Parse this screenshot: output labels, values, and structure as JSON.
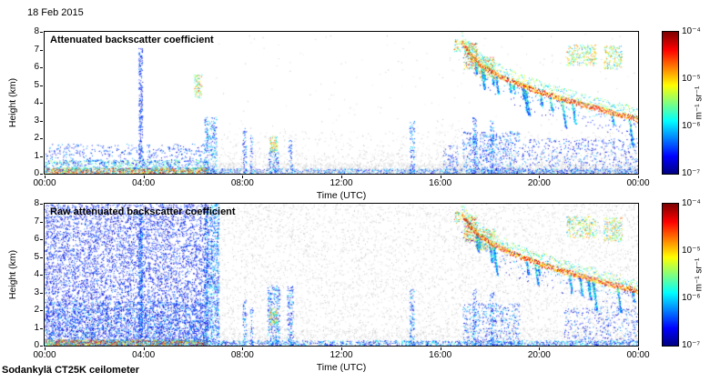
{
  "header": {
    "date": "18 Feb 2015"
  },
  "footer": {
    "instrument": "Sodankylä CT25K ceilometer"
  },
  "chart_data": [
    {
      "type": "heatmap",
      "title": "Attenuated backscatter coefficient",
      "xlabel": "Time (UTC)",
      "ylabel": "Height (km)",
      "x_tick_labels": [
        "00:00",
        "04:00",
        "08:00",
        "12:00",
        "16:00",
        "20:00",
        "00:00"
      ],
      "y_tick_labels": [
        0,
        1,
        2,
        3,
        4,
        5,
        6,
        7,
        8
      ],
      "xlim_hours": [
        0,
        24
      ],
      "ylim": [
        0,
        8
      ],
      "colorbar": {
        "scale": "log",
        "colormap": "jet",
        "unit": "m⁻¹ sr⁻¹",
        "tick_labels": [
          "10⁻⁴",
          "10⁻⁵",
          "10⁻⁶",
          "10⁻⁷"
        ],
        "value_range_top_to_bottom": [
          0.0001,
          1e-07
        ]
      },
      "intensity_note": "region intensity normalized: 0 = 1e-7, 1 = 1e-4 m-1 sr-1",
      "regions": [
        {
          "kind": "speckle",
          "t": [
            0,
            6.6
          ],
          "h": [
            0,
            0.35
          ],
          "density": 1.0,
          "intensity": [
            0.15,
            1.0
          ],
          "label": "strong surface aerosol layer"
        },
        {
          "kind": "speckle",
          "t": [
            0,
            6.6
          ],
          "h": [
            0.3,
            0.8
          ],
          "density": 0.3,
          "intensity": [
            0.08,
            0.55
          ]
        },
        {
          "kind": "speckle",
          "t": [
            0,
            6.6
          ],
          "h": [
            0.5,
            1.7
          ],
          "density": 0.1,
          "intensity": [
            0.03,
            0.3
          ]
        },
        {
          "kind": "speckle",
          "t": [
            3.8,
            3.95
          ],
          "h": [
            0.6,
            7.1
          ],
          "density": 0.5,
          "intensity": [
            0.04,
            0.3
          ],
          "label": "narrow vertical spike ~03:50"
        },
        {
          "kind": "speckle",
          "t": [
            6.05,
            6.35
          ],
          "h": [
            4.3,
            5.6
          ],
          "density": 0.45,
          "intensity": [
            0.3,
            0.9
          ],
          "label": "mid-level cloud patch ~06:15"
        },
        {
          "kind": "speckle",
          "t": [
            6.45,
            6.95
          ],
          "h": [
            0,
            3.2
          ],
          "density": 0.3,
          "intensity": [
            0.04,
            0.45
          ]
        },
        {
          "kind": "speckle",
          "t": [
            6.6,
            24
          ],
          "h": [
            0,
            0.3
          ],
          "density": 0.45,
          "intensity": [
            0.03,
            0.4
          ]
        },
        {
          "kind": "speckle",
          "t": [
            6.6,
            24
          ],
          "h": [
            0,
            0.6
          ],
          "density": 0.25,
          "gray": true
        },
        {
          "kind": "speckle",
          "t": [
            6.6,
            24
          ],
          "h": [
            0,
            1.2
          ],
          "density": 0.1,
          "gray": true
        },
        {
          "kind": "speckle",
          "t": [
            6.6,
            24
          ],
          "h": [
            1.2,
            2.4
          ],
          "density": 0.035,
          "gray": true
        },
        {
          "kind": "speckle",
          "t": [
            6.6,
            24
          ],
          "h": [
            2.4,
            7.9
          ],
          "density": 0.003,
          "gray": true
        },
        {
          "kind": "speckle",
          "t": [
            15.8,
            17.0
          ],
          "h": [
            0,
            3.0
          ],
          "density": 0.03,
          "gray": true
        },
        {
          "kind": "speckle",
          "t": [
            8.0,
            8.15
          ],
          "h": [
            0,
            2.6
          ],
          "density": 0.3,
          "intensity": [
            0.04,
            0.35
          ]
        },
        {
          "kind": "speckle",
          "t": [
            8.3,
            8.42
          ],
          "h": [
            0,
            2.2
          ],
          "density": 0.25,
          "intensity": [
            0.04,
            0.35
          ]
        },
        {
          "kind": "speckle",
          "t": [
            9.05,
            9.45
          ],
          "h": [
            0,
            1.4
          ],
          "density": 0.3,
          "intensity": [
            0.04,
            0.4
          ]
        },
        {
          "kind": "speckle",
          "t": [
            9.1,
            9.4
          ],
          "h": [
            1.2,
            2.15
          ],
          "density": 0.55,
          "intensity": [
            0.3,
            0.85
          ],
          "label": "low cloud ~09:15"
        },
        {
          "kind": "speckle",
          "t": [
            9.85,
            10.0
          ],
          "h": [
            0,
            2.0
          ],
          "density": 0.25,
          "intensity": [
            0.04,
            0.35
          ]
        },
        {
          "kind": "speckle",
          "t": [
            14.75,
            14.95
          ],
          "h": [
            0,
            3.0
          ],
          "density": 0.28,
          "intensity": [
            0.04,
            0.38
          ]
        },
        {
          "kind": "speckle",
          "t": [
            16.1,
            16.7
          ],
          "h": [
            0,
            1.6
          ],
          "density": 0.15,
          "intensity": [
            0.03,
            0.3
          ]
        },
        {
          "kind": "speckle",
          "t": [
            16.9,
            19.2
          ],
          "h": [
            0,
            2.4
          ],
          "density": 0.18,
          "intensity": [
            0.03,
            0.35
          ]
        },
        {
          "kind": "speckle",
          "t": [
            17.3,
            17.45
          ],
          "h": [
            0,
            3.2
          ],
          "density": 0.35,
          "intensity": [
            0.05,
            0.4
          ]
        },
        {
          "kind": "speckle",
          "t": [
            18.0,
            18.15
          ],
          "h": [
            0,
            3.0
          ],
          "density": 0.35,
          "intensity": [
            0.05,
            0.4
          ]
        },
        {
          "kind": "speckle",
          "t": [
            19.3,
            24
          ],
          "h": [
            0,
            2.0
          ],
          "density": 0.1,
          "intensity": [
            0.03,
            0.3
          ]
        },
        {
          "kind": "speckle",
          "t": [
            16.55,
            16.8
          ],
          "h": [
            6.9,
            7.6
          ],
          "density": 0.4,
          "intensity": [
            0.3,
            0.9
          ]
        },
        {
          "kind": "speckle",
          "t": [
            16.95,
            17.5
          ],
          "h": [
            5.9,
            7.4
          ],
          "density": 0.5,
          "intensity": [
            0.3,
            0.95
          ]
        },
        {
          "kind": "speckle",
          "t": [
            17.4,
            18.2
          ],
          "h": [
            5.4,
            6.6
          ],
          "density": 0.4,
          "intensity": [
            0.3,
            0.9
          ]
        },
        {
          "kind": "path",
          "label": "descending precipitating cloud layer 17:00-24:00",
          "points": [
            [
              16.85,
              7.4
            ],
            [
              17.2,
              6.7
            ],
            [
              17.6,
              6.15
            ],
            [
              18.1,
              5.7
            ],
            [
              18.7,
              5.3
            ],
            [
              19.4,
              4.9
            ],
            [
              20.1,
              4.55
            ],
            [
              20.9,
              4.2
            ],
            [
              21.7,
              3.9
            ],
            [
              22.5,
              3.6
            ],
            [
              23.3,
              3.3
            ],
            [
              24.0,
              3.05
            ]
          ],
          "thickness": 0.3,
          "top_halo": 0.6,
          "bottom_halo": 1.1,
          "core": [
            0.6,
            1.0
          ],
          "halo": [
            0.25,
            0.65
          ],
          "streaks": 16
        },
        {
          "kind": "speckle",
          "t": [
            21.1,
            22.3
          ],
          "h": [
            6.1,
            7.3
          ],
          "density": 0.3,
          "intensity": [
            0.25,
            0.8
          ],
          "label": "upper cloud band"
        },
        {
          "kind": "speckle",
          "t": [
            22.6,
            23.35
          ],
          "h": [
            5.9,
            7.25
          ],
          "density": 0.3,
          "intensity": [
            0.25,
            0.8
          ]
        }
      ]
    },
    {
      "type": "heatmap",
      "title": "Raw attenuated backscatter coefficient",
      "xlabel": "Time (UTC)",
      "ylabel": "Height (km)",
      "x_tick_labels": [
        "00:00",
        "04:00",
        "08:00",
        "12:00",
        "16:00",
        "20:00",
        "00:00"
      ],
      "y_tick_labels": [
        0,
        1,
        2,
        3,
        4,
        5,
        6,
        7,
        8
      ],
      "xlim_hours": [
        0,
        24
      ],
      "ylim": [
        0,
        8
      ],
      "colorbar": {
        "scale": "log",
        "colormap": "jet",
        "unit": "m⁻¹ sr⁻¹",
        "tick_labels": [
          "10⁻⁴",
          "10⁻⁵",
          "10⁻⁶",
          "10⁻⁷"
        ],
        "value_range_top_to_bottom": [
          0.0001,
          1e-07
        ]
      },
      "intensity_note": "region intensity normalized: 0 = 1e-7, 1 = 1e-4 m-1 sr-1",
      "regions": [
        {
          "kind": "speckle",
          "t": [
            0,
            6.6
          ],
          "h": [
            0,
            8
          ],
          "density": 0.25,
          "intensity": [
            0.02,
            0.25
          ],
          "label": "dense raw noise 00:00-06:30 full column"
        },
        {
          "kind": "speckle",
          "t": [
            0,
            6.6
          ],
          "h": [
            0,
            2.5
          ],
          "density": 0.18,
          "intensity": [
            0.03,
            0.35
          ]
        },
        {
          "kind": "speckle",
          "t": [
            0,
            6.6
          ],
          "h": [
            0,
            0.35
          ],
          "density": 1.0,
          "intensity": [
            0.15,
            1.0
          ],
          "label": "strong surface aerosol layer"
        },
        {
          "kind": "speckle",
          "t": [
            3.8,
            3.95
          ],
          "h": [
            0.5,
            7.5
          ],
          "density": 0.6,
          "intensity": [
            0.05,
            0.35
          ],
          "label": "narrow vertical spike ~03:50"
        },
        {
          "kind": "speckle",
          "t": [
            6.45,
            7.05
          ],
          "h": [
            0,
            8
          ],
          "density": 0.4,
          "intensity": [
            0.04,
            0.4
          ],
          "label": "dense band 06:30-07:00"
        },
        {
          "kind": "speckle",
          "t": [
            7.0,
            24
          ],
          "h": [
            0,
            8
          ],
          "density": 0.085,
          "gray": true,
          "label": "background gray noise"
        },
        {
          "kind": "speckle",
          "t": [
            7.0,
            24
          ],
          "h": [
            0,
            1.0
          ],
          "density": 0.1,
          "gray": true
        },
        {
          "kind": "speckle",
          "t": [
            7.0,
            24
          ],
          "h": [
            0,
            0.3
          ],
          "density": 0.4,
          "intensity": [
            0.03,
            0.45
          ]
        },
        {
          "kind": "speckle",
          "t": [
            8.0,
            8.15
          ],
          "h": [
            0,
            2.6
          ],
          "density": 0.3,
          "intensity": [
            0.04,
            0.35
          ]
        },
        {
          "kind": "speckle",
          "t": [
            8.3,
            8.42
          ],
          "h": [
            0,
            2.2
          ],
          "density": 0.25,
          "intensity": [
            0.04,
            0.35
          ]
        },
        {
          "kind": "speckle",
          "t": [
            9.0,
            9.5
          ],
          "h": [
            0,
            3.4
          ],
          "density": 0.3,
          "intensity": [
            0.04,
            0.4
          ]
        },
        {
          "kind": "speckle",
          "t": [
            9.1,
            9.4
          ],
          "h": [
            1.2,
            2.15
          ],
          "density": 0.55,
          "intensity": [
            0.3,
            0.85
          ],
          "label": "low cloud ~09:15"
        },
        {
          "kind": "speckle",
          "t": [
            9.8,
            10.05
          ],
          "h": [
            0,
            3.4
          ],
          "density": 0.3,
          "intensity": [
            0.04,
            0.38
          ]
        },
        {
          "kind": "speckle",
          "t": [
            14.75,
            14.95
          ],
          "h": [
            0,
            3.2
          ],
          "density": 0.28,
          "intensity": [
            0.04,
            0.38
          ]
        },
        {
          "kind": "speckle",
          "t": [
            16.9,
            19.2
          ],
          "h": [
            0,
            2.4
          ],
          "density": 0.15,
          "intensity": [
            0.03,
            0.35
          ]
        },
        {
          "kind": "speckle",
          "t": [
            17.3,
            17.45
          ],
          "h": [
            0,
            3.2
          ],
          "density": 0.3,
          "intensity": [
            0.05,
            0.4
          ]
        },
        {
          "kind": "speckle",
          "t": [
            18.0,
            18.15
          ],
          "h": [
            0,
            3.0
          ],
          "density": 0.3,
          "intensity": [
            0.05,
            0.4
          ]
        },
        {
          "kind": "speckle",
          "t": [
            21.0,
            24
          ],
          "h": [
            0,
            2.2
          ],
          "density": 0.1,
          "intensity": [
            0.03,
            0.3
          ]
        },
        {
          "kind": "speckle",
          "t": [
            16.55,
            16.8
          ],
          "h": [
            6.9,
            7.6
          ],
          "density": 0.4,
          "intensity": [
            0.3,
            0.9
          ]
        },
        {
          "kind": "speckle",
          "t": [
            16.95,
            17.5
          ],
          "h": [
            5.9,
            7.4
          ],
          "density": 0.5,
          "intensity": [
            0.3,
            0.95
          ]
        },
        {
          "kind": "speckle",
          "t": [
            17.4,
            18.2
          ],
          "h": [
            5.4,
            6.6
          ],
          "density": 0.4,
          "intensity": [
            0.3,
            0.9
          ]
        },
        {
          "kind": "path",
          "label": "descending precipitating cloud layer 17:00-24:00",
          "points": [
            [
              16.85,
              7.4
            ],
            [
              17.2,
              6.7
            ],
            [
              17.6,
              6.15
            ],
            [
              18.1,
              5.7
            ],
            [
              18.7,
              5.3
            ],
            [
              19.4,
              4.9
            ],
            [
              20.1,
              4.55
            ],
            [
              20.9,
              4.2
            ],
            [
              21.7,
              3.9
            ],
            [
              22.5,
              3.6
            ],
            [
              23.3,
              3.3
            ],
            [
              24.0,
              3.05
            ]
          ],
          "thickness": 0.3,
          "top_halo": 0.6,
          "bottom_halo": 1.1,
          "core": [
            0.6,
            1.0
          ],
          "halo": [
            0.25,
            0.65
          ],
          "streaks": 16
        },
        {
          "kind": "speckle",
          "t": [
            21.1,
            22.3
          ],
          "h": [
            6.1,
            7.3
          ],
          "density": 0.3,
          "intensity": [
            0.25,
            0.8
          ],
          "label": "upper cloud band"
        },
        {
          "kind": "speckle",
          "t": [
            22.6,
            23.35
          ],
          "h": [
            5.9,
            7.25
          ],
          "density": 0.3,
          "intensity": [
            0.25,
            0.8
          ]
        }
      ]
    }
  ]
}
